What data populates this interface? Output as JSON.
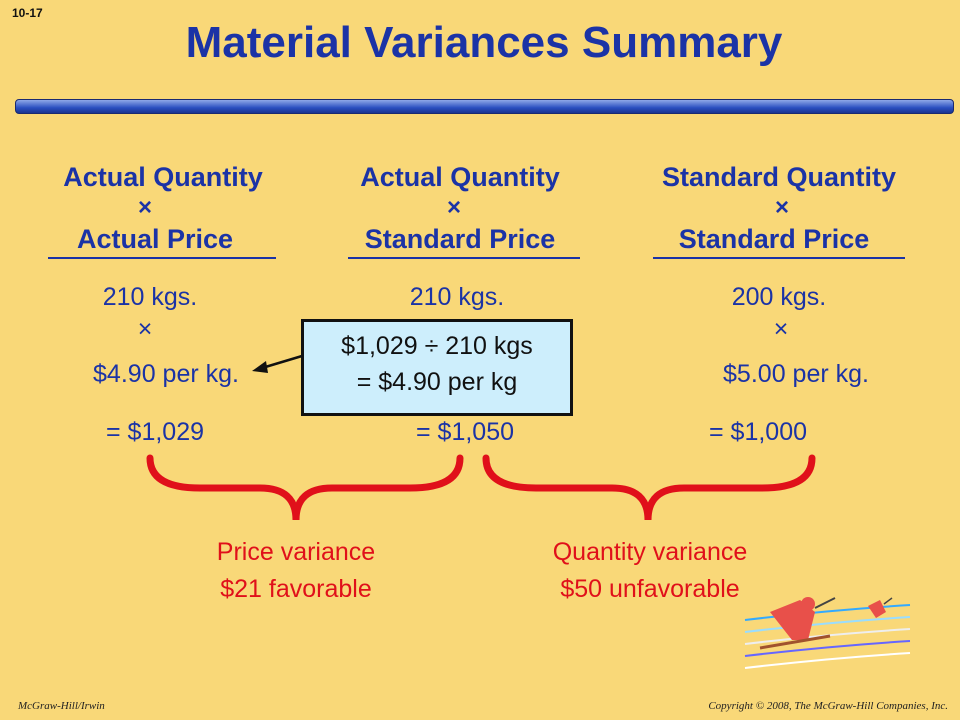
{
  "slide_number": "10-17",
  "title": "Material Variances Summary",
  "columns": [
    {
      "header_top": "Actual Quantity",
      "header_times": "×",
      "header_bottom": "Actual Price",
      "quantity": "210 kgs.",
      "times": "×",
      "price": "$4.90 per kg.",
      "total": "= $1,029"
    },
    {
      "header_top": "Actual Quantity",
      "header_times": "×",
      "header_bottom": "Standard Price",
      "quantity": "210 kgs.",
      "total": "= $1,050"
    },
    {
      "header_top": "Standard Quantity",
      "header_times": "×",
      "header_bottom": "Standard Price",
      "quantity": "200 kgs.",
      "times": "×",
      "price": "$5.00 per kg.",
      "total": "= $1,000"
    }
  ],
  "callout": {
    "line1": "$1,029 ÷ 210 kgs",
    "line2": "= $4.90 per kg"
  },
  "variances": [
    {
      "name": "Price variance",
      "amount": "$21 favorable"
    },
    {
      "name": "Quantity variance",
      "amount": "$50 unfavorable"
    }
  ],
  "footer": {
    "left": "McGraw-Hill/Irwin",
    "right": "Copyright © 2008, The McGraw-Hill Companies, Inc."
  }
}
